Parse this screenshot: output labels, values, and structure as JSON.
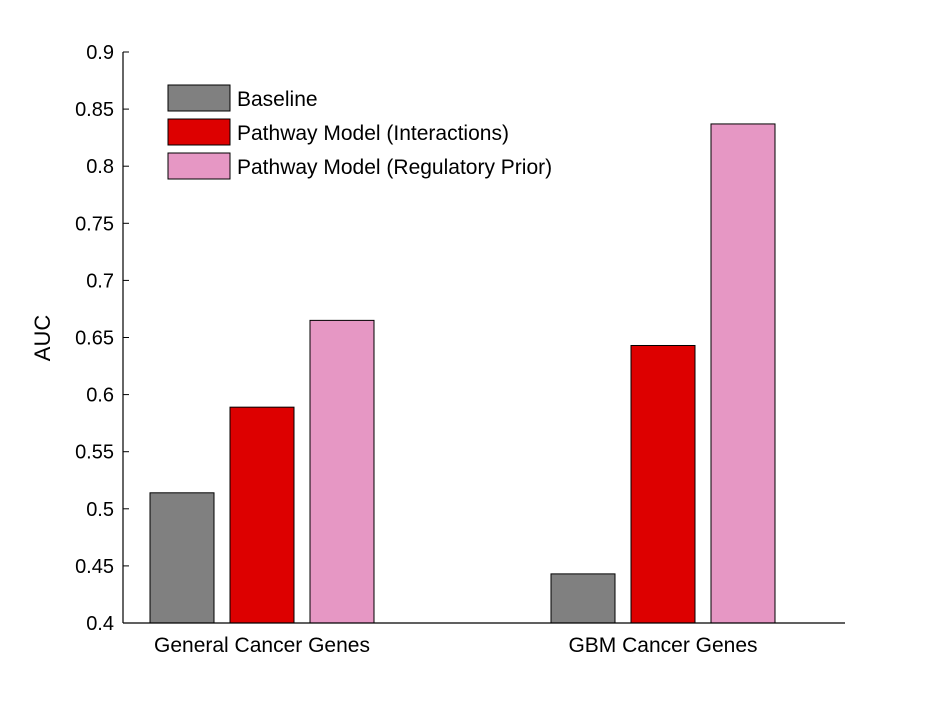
{
  "chart_data": {
    "type": "bar",
    "title": "",
    "xlabel": "",
    "ylabel": "AUC",
    "ylim": [
      0.4,
      0.9
    ],
    "yticks": [
      "0.4",
      "0.45",
      "0.5",
      "0.55",
      "0.6",
      "0.65",
      "0.7",
      "0.75",
      "0.8",
      "0.85",
      "0.9"
    ],
    "categories": [
      "General Cancer Genes",
      "GBM Cancer Genes"
    ],
    "series": [
      {
        "name": "Baseline",
        "color": "#808080",
        "values": [
          0.514,
          0.443
        ]
      },
      {
        "name": "Pathway Model (Interactions)",
        "color": "#dd0000",
        "values": [
          0.589,
          0.643
        ]
      },
      {
        "name": "Pathway Model (Regulatory Prior)",
        "color": "#e697c4",
        "values": [
          0.665,
          0.837
        ]
      }
    ],
    "grid": false,
    "legend_position": "top-left"
  }
}
